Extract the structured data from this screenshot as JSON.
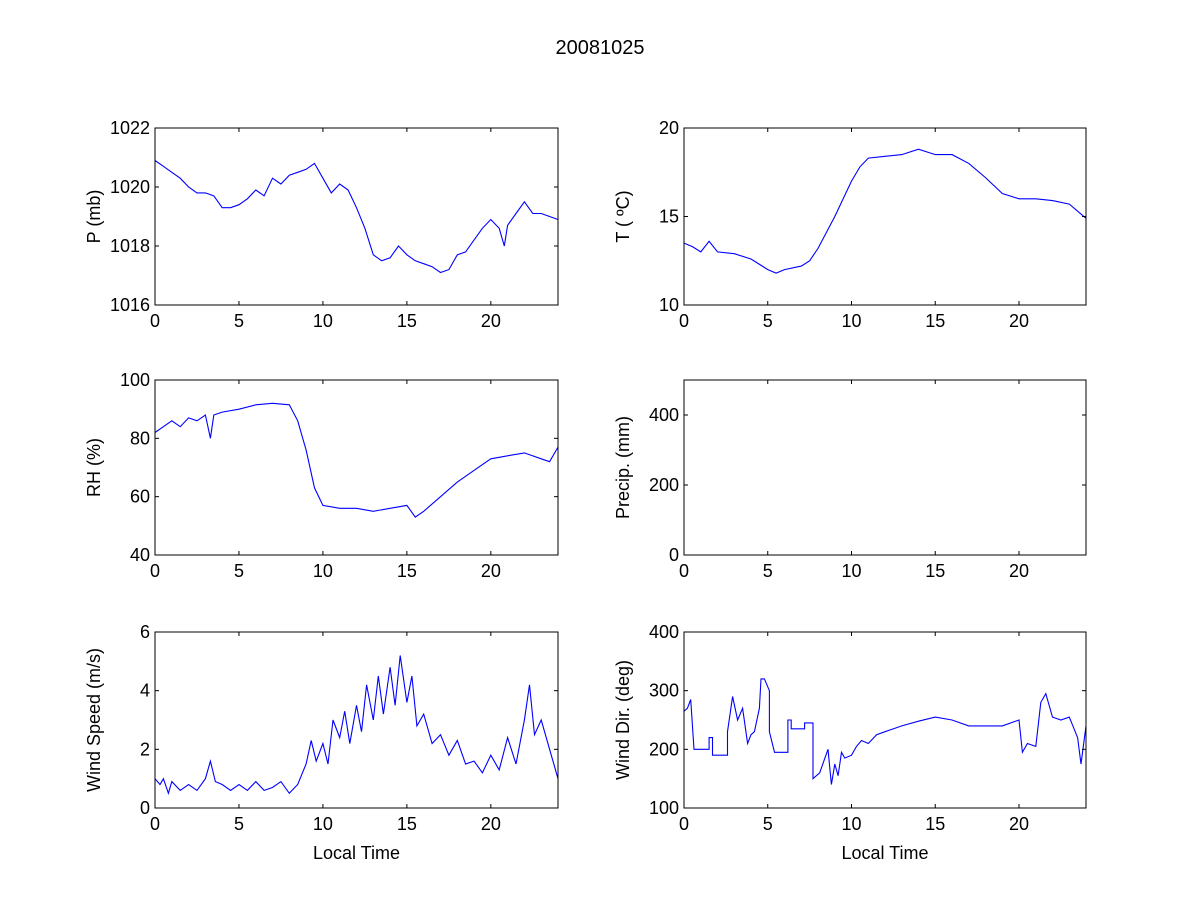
{
  "title": "20081025",
  "line_color": "#0000ff",
  "chart_data": [
    {
      "type": "line",
      "id": "pressure",
      "ylabel": "P (mb)",
      "xlabel": "",
      "xlim": [
        0,
        24
      ],
      "ylim": [
        1016,
        1022
      ],
      "xticks": [
        0,
        5,
        10,
        15,
        20
      ],
      "yticks": [
        1016,
        1018,
        1020,
        1022
      ],
      "x": [
        0,
        0.5,
        1,
        1.5,
        2,
        2.5,
        3,
        3.5,
        4,
        4.5,
        5,
        5.5,
        6,
        6.5,
        7,
        7.5,
        8,
        8.5,
        9,
        9.5,
        10,
        10.5,
        11,
        11.5,
        12,
        12.5,
        13,
        13.5,
        14,
        14.5,
        15,
        15.5,
        16,
        16.5,
        17,
        17.5,
        18,
        18.5,
        19,
        19.5,
        20,
        20.5,
        20.8,
        21,
        21.5,
        22,
        22.5,
        23,
        23.5,
        24
      ],
      "y": [
        1020.9,
        1020.7,
        1020.5,
        1020.3,
        1020.0,
        1019.8,
        1019.8,
        1019.7,
        1019.3,
        1019.3,
        1019.4,
        1019.6,
        1019.9,
        1019.7,
        1020.3,
        1020.1,
        1020.4,
        1020.5,
        1020.6,
        1020.8,
        1020.3,
        1019.8,
        1020.1,
        1019.9,
        1019.3,
        1018.6,
        1017.7,
        1017.5,
        1017.6,
        1018.0,
        1017.7,
        1017.5,
        1017.4,
        1017.3,
        1017.1,
        1017.2,
        1017.7,
        1017.8,
        1018.2,
        1018.6,
        1018.9,
        1018.6,
        1018.0,
        1018.7,
        1019.1,
        1019.5,
        1019.1,
        1019.1,
        1019.0,
        1018.9
      ]
    },
    {
      "type": "line",
      "id": "temperature",
      "ylabel": "T ( ºC)",
      "xlabel": "",
      "xlim": [
        0,
        24
      ],
      "ylim": [
        10,
        20
      ],
      "xticks": [
        0,
        5,
        10,
        15,
        20
      ],
      "yticks": [
        10,
        15,
        20
      ],
      "x": [
        0,
        0.5,
        1,
        1.5,
        2,
        3,
        4,
        5,
        5.5,
        6,
        7,
        7.5,
        8,
        9,
        10,
        10.5,
        11,
        12,
        13,
        14,
        15,
        16,
        17,
        18,
        19,
        20,
        21,
        22,
        23,
        24
      ],
      "y": [
        13.5,
        13.3,
        13.0,
        13.6,
        13.0,
        12.9,
        12.6,
        12.0,
        11.8,
        12.0,
        12.2,
        12.5,
        13.2,
        15.0,
        17.0,
        17.8,
        18.3,
        18.4,
        18.5,
        18.8,
        18.5,
        18.5,
        18.0,
        17.2,
        16.3,
        16.0,
        16.0,
        15.9,
        15.7,
        14.9
      ]
    },
    {
      "type": "line",
      "id": "rh",
      "ylabel": "RH (%)",
      "xlabel": "",
      "xlim": [
        0,
        24
      ],
      "ylim": [
        40,
        100
      ],
      "xticks": [
        0,
        5,
        10,
        15,
        20
      ],
      "yticks": [
        40,
        60,
        80,
        100
      ],
      "x": [
        0,
        0.5,
        1,
        1.5,
        2,
        2.5,
        3,
        3.3,
        3.5,
        4,
        5,
        6,
        7,
        8,
        8.5,
        9,
        9.5,
        10,
        11,
        12,
        13,
        14,
        15,
        15.5,
        16,
        17,
        18,
        19,
        20,
        21,
        22,
        23,
        23.5,
        24
      ],
      "y": [
        82,
        84,
        86,
        84,
        87,
        86,
        88,
        80,
        88,
        89,
        90,
        91.5,
        92,
        91.5,
        86,
        76,
        63,
        57,
        56,
        56,
        55,
        56,
        57,
        53,
        55,
        60,
        65,
        69,
        73,
        74,
        75,
        73,
        72,
        77
      ]
    },
    {
      "type": "line",
      "id": "precip",
      "ylabel": "Precip. (mm)",
      "xlabel": "",
      "xlim": [
        0,
        24
      ],
      "ylim": [
        0,
        500
      ],
      "xticks": [
        0,
        5,
        10,
        15,
        20
      ],
      "yticks": [
        0,
        200,
        400
      ],
      "x": [],
      "y": []
    },
    {
      "type": "line",
      "id": "wind_speed",
      "ylabel": "Wind Speed (m/s)",
      "xlabel": "Local Time",
      "xlim": [
        0,
        24
      ],
      "ylim": [
        0,
        6
      ],
      "xticks": [
        0,
        5,
        10,
        15,
        20
      ],
      "yticks": [
        0,
        2,
        4,
        6
      ],
      "x": [
        0,
        0.3,
        0.5,
        0.8,
        1,
        1.5,
        2,
        2.5,
        3,
        3.3,
        3.6,
        4,
        4.5,
        5,
        5.5,
        6,
        6.5,
        7,
        7.5,
        8,
        8.5,
        9,
        9.3,
        9.6,
        10,
        10.3,
        10.6,
        11,
        11.3,
        11.6,
        12,
        12.3,
        12.6,
        13,
        13.3,
        13.6,
        14,
        14.3,
        14.6,
        15,
        15.3,
        15.6,
        16,
        16.5,
        17,
        17.5,
        18,
        18.5,
        19,
        19.5,
        20,
        20.5,
        21,
        21.5,
        22,
        22.3,
        22.6,
        23,
        23.5,
        24
      ],
      "y": [
        1.0,
        0.8,
        1.0,
        0.5,
        0.9,
        0.6,
        0.8,
        0.6,
        1.0,
        1.6,
        0.9,
        0.8,
        0.6,
        0.8,
        0.6,
        0.9,
        0.6,
        0.7,
        0.9,
        0.5,
        0.8,
        1.5,
        2.3,
        1.6,
        2.2,
        1.5,
        3.0,
        2.4,
        3.3,
        2.2,
        3.5,
        2.6,
        4.2,
        3.0,
        4.5,
        3.2,
        4.8,
        3.5,
        5.2,
        3.6,
        4.5,
        2.8,
        3.2,
        2.2,
        2.5,
        1.8,
        2.3,
        1.5,
        1.6,
        1.2,
        1.8,
        1.3,
        2.4,
        1.5,
        3.0,
        4.2,
        2.5,
        3.0,
        2.0,
        1.0
      ]
    },
    {
      "type": "line",
      "id": "wind_dir",
      "ylabel": "Wind Dir. (deg)",
      "xlabel": "Local Time",
      "xlim": [
        0,
        24
      ],
      "ylim": [
        100,
        400
      ],
      "xticks": [
        0,
        5,
        10,
        15,
        20
      ],
      "yticks": [
        100,
        200,
        300,
        400
      ],
      "x": [
        0,
        0.2,
        0.4,
        0.6,
        0.6,
        1.5,
        1.5,
        1.7,
        1.7,
        2.6,
        2.6,
        2.9,
        3.2,
        3.5,
        3.8,
        4,
        4.2,
        4.5,
        4.6,
        4.8,
        5.1,
        5.1,
        5.4,
        5.5,
        6.2,
        6.2,
        6.4,
        6.4,
        7.2,
        7.2,
        7.7,
        7.7,
        8.1,
        8.6,
        8.8,
        9.0,
        9.2,
        9.4,
        9.6,
        10,
        10.3,
        10.6,
        11,
        11.5,
        12,
        13,
        14,
        15,
        16,
        17,
        18,
        19,
        20,
        20.2,
        20.5,
        21,
        21.3,
        21.6,
        22,
        22.5,
        23,
        23.5,
        23.7,
        24
      ],
      "y": [
        265,
        270,
        285,
        200,
        200,
        200,
        220,
        220,
        190,
        190,
        230,
        290,
        250,
        270,
        210,
        225,
        230,
        270,
        320,
        320,
        300,
        230,
        195,
        195,
        195,
        250,
        250,
        235,
        235,
        245,
        245,
        150,
        160,
        200,
        140,
        175,
        155,
        195,
        185,
        190,
        205,
        215,
        210,
        225,
        230,
        240,
        248,
        255,
        250,
        240,
        240,
        240,
        250,
        195,
        210,
        205,
        280,
        295,
        255,
        250,
        255,
        220,
        175,
        240
      ]
    }
  ]
}
